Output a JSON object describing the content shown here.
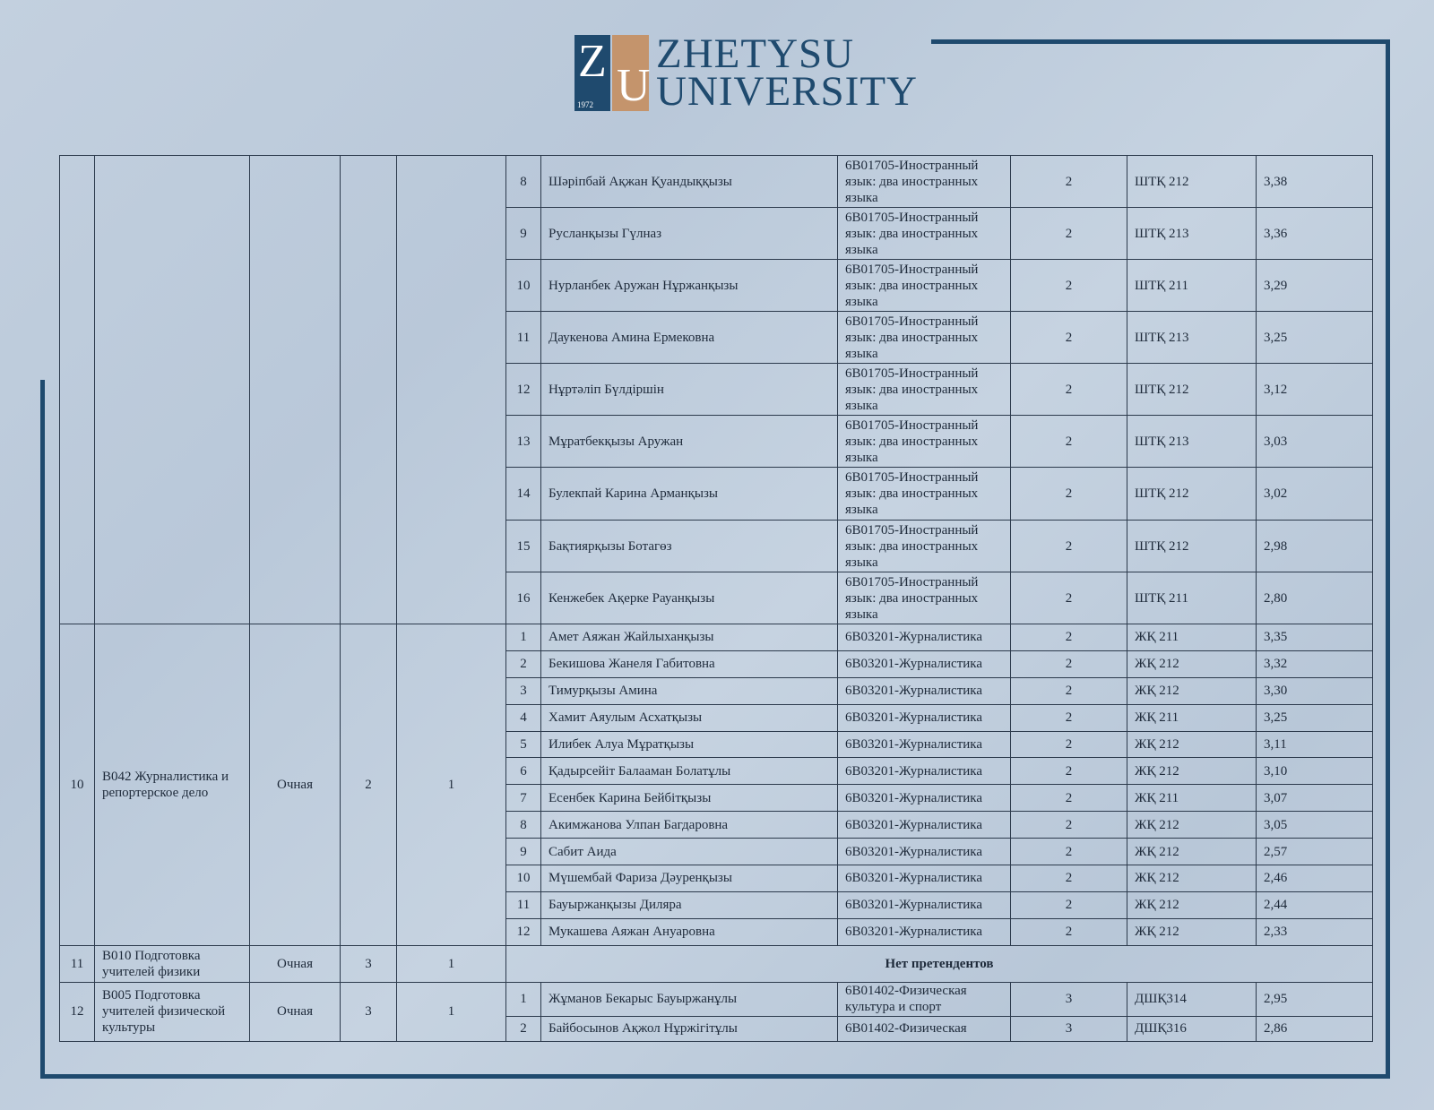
{
  "logo": {
    "letters_z": "Z",
    "letters_u": "U",
    "year": "1972",
    "line1": "ZHETYSU",
    "line2": "UNIVERSITY",
    "colors": {
      "navy": "#1f4a6e",
      "tan": "#c4946c"
    }
  },
  "groups": [
    {
      "no": "",
      "program": "",
      "form": "",
      "course": "",
      "grants": "",
      "students": [
        {
          "n": "8",
          "name": "Шәріпбай Ақжан Қуандыққызы",
          "edu": "6B01705-Иностранный язык: два иностранных языка",
          "course": "2",
          "group": "ШТҚ 212",
          "gpa": "3,38"
        },
        {
          "n": "9",
          "name": "Русланқызы Гүлназ",
          "edu": "6B01705-Иностранный язык: два иностранных языка",
          "course": "2",
          "group": "ШТҚ 213",
          "gpa": "3,36"
        },
        {
          "n": "10",
          "name": "Нурланбек Аружан Нұржанқызы",
          "edu": "6B01705-Иностранный язык: два иностранных языка",
          "course": "2",
          "group": "ШТҚ 211",
          "gpa": "3,29"
        },
        {
          "n": "11",
          "name": "Даукенова Амина Ермековна",
          "edu": "6B01705-Иностранный язык: два иностранных языка",
          "course": "2",
          "group": "ШТҚ 213",
          "gpa": "3,25"
        },
        {
          "n": "12",
          "name": "Нұртәліп Бүлдіршін",
          "edu": "6B01705-Иностранный язык: два иностранных языка",
          "course": "2",
          "group": "ШТҚ 212",
          "gpa": "3,12"
        },
        {
          "n": "13",
          "name": "Мұратбекқызы Аружан",
          "edu": "6B01705-Иностранный язык: два иностранных языка",
          "course": "2",
          "group": "ШТҚ 213",
          "gpa": "3,03"
        },
        {
          "n": "14",
          "name": "Булекпай Карина Арманқызы",
          "edu": "6B01705-Иностранный язык: два иностранных языка",
          "course": "2",
          "group": "ШТҚ 212",
          "gpa": "3,02"
        },
        {
          "n": "15",
          "name": "Бақтиярқызы Ботагөз",
          "edu": "6B01705-Иностранный язык: два иностранных языка",
          "course": "2",
          "group": "ШТҚ 212",
          "gpa": "2,98"
        },
        {
          "n": "16",
          "name": "Кенжебек Ақерке Рауанқызы",
          "edu": "6B01705-Иностранный язык: два иностранных языка",
          "course": "2",
          "group": "ШТҚ 211",
          "gpa": "2,80"
        }
      ]
    },
    {
      "no": "10",
      "program": "В042 Журналистика и репортерское дело",
      "form": "Очная",
      "course": "2",
      "grants": "1",
      "students": [
        {
          "n": "1",
          "name": "Амет Аяжан Жайлыханқызы",
          "edu": "6B03201-Журналистика",
          "course": "2",
          "group": "ЖҚ 211",
          "gpa": "3,35"
        },
        {
          "n": "2",
          "name": "Бекишова Жанеля Габитовна",
          "edu": "6B03201-Журналистика",
          "course": "2",
          "group": "ЖҚ 212",
          "gpa": "3,32"
        },
        {
          "n": "3",
          "name": "Тимурқызы Амина",
          "edu": "6B03201-Журналистика",
          "course": "2",
          "group": "ЖҚ 212",
          "gpa": "3,30"
        },
        {
          "n": "4",
          "name": "Хамит Аяулым Асхатқызы",
          "edu": "6B03201-Журналистика",
          "course": "2",
          "group": "ЖҚ 211",
          "gpa": "3,25"
        },
        {
          "n": "5",
          "name": "Илибек Алуа Мұратқызы",
          "edu": "6B03201-Журналистика",
          "course": "2",
          "group": "ЖҚ 212",
          "gpa": "3,11"
        },
        {
          "n": "6",
          "name": "Қадырсейіт Балааман Болатұлы",
          "edu": "6B03201-Журналистика",
          "course": "2",
          "group": "ЖҚ 212",
          "gpa": "3,10"
        },
        {
          "n": "7",
          "name": "Есенбек Карина Бейбітқызы",
          "edu": "6B03201-Журналистика",
          "course": "2",
          "group": "ЖҚ 211",
          "gpa": "3,07"
        },
        {
          "n": "8",
          "name": "Акимжанова Улпан Багдаровна",
          "edu": "6B03201-Журналистика",
          "course": "2",
          "group": "ЖҚ 212",
          "gpa": "3,05"
        },
        {
          "n": "9",
          "name": "Сабит Аида",
          "edu": "6B03201-Журналистика",
          "course": "2",
          "group": "ЖҚ 212",
          "gpa": "2,57"
        },
        {
          "n": "10",
          "name": "Мүшембай Фариза Дәуренқызы",
          "edu": "6B03201-Журналистика",
          "course": "2",
          "group": "ЖҚ 212",
          "gpa": "2,46"
        },
        {
          "n": "11",
          "name": "Бауыржанқызы Диляра",
          "edu": "6B03201-Журналистика",
          "course": "2",
          "group": "ЖҚ 212",
          "gpa": "2,44"
        },
        {
          "n": "12",
          "name": "Мукашева Аяжан Ануаровна",
          "edu": "6B03201-Журналистика",
          "course": "2",
          "group": "ЖҚ 212",
          "gpa": "2,33"
        }
      ]
    },
    {
      "no": "11",
      "program": "В010 Подготовка учителей физики",
      "form": "Очная",
      "course": "3",
      "grants": "1",
      "no_candidates": "Нет претендентов",
      "students": []
    },
    {
      "no": "12",
      "program": "В005 Подготовка учителей физической культуры",
      "form": "Очная",
      "course": "3",
      "grants": "1",
      "students": [
        {
          "n": "1",
          "name": "Жұманов Бекарыс Бауыржанұлы",
          "edu": "6B01402-Физическая культура и спорт",
          "course": "3",
          "group": "ДШҚ314",
          "gpa": "2,95"
        },
        {
          "n": "2",
          "name": "Байбосынов Ақжол Нұржігітұлы",
          "edu": "6B01402-Физическая",
          "course": "3",
          "group": "ДШҚ316",
          "gpa": "2,86"
        }
      ]
    }
  ]
}
